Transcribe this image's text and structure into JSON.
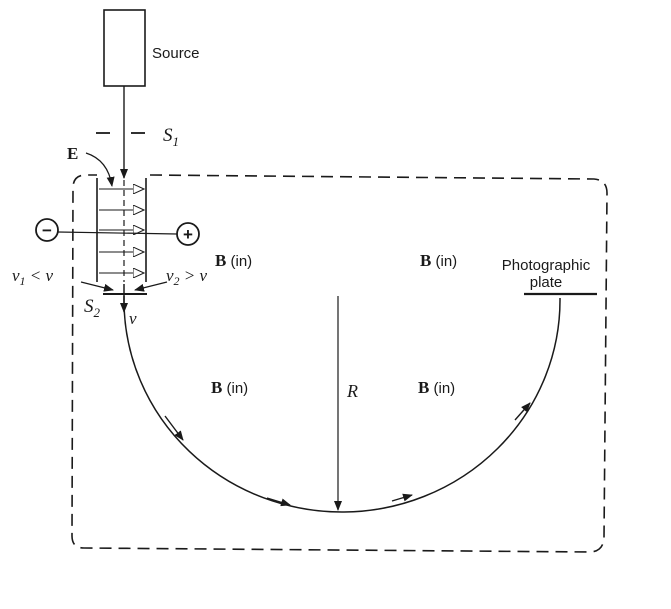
{
  "labels": {
    "source": "Source",
    "s1_letter": "S",
    "s1_sub": "1",
    "e_field": "E",
    "minus": "−",
    "plus": "+",
    "b_in_1_letter": "B",
    "b_in_1_text": " (in)",
    "b_in_2_letter": "B",
    "b_in_2_text": " (in)",
    "b_in_3_letter": "B",
    "b_in_3_text": " (in)",
    "b_in_4_letter": "B",
    "b_in_4_text": " (in)",
    "v1_v": "v",
    "v1_sub": "1",
    "v1_rel": " < v",
    "v2_v": "v",
    "v2_sub": "2",
    "v2_rel": " > v",
    "s2_letter": "S",
    "s2_sub": "2",
    "v_label": "v",
    "radius": "R",
    "plate_line1": "Photographic",
    "plate_line2": "plate"
  },
  "colors": {
    "ink": "#1a1a1a",
    "background": "#ffffff"
  }
}
